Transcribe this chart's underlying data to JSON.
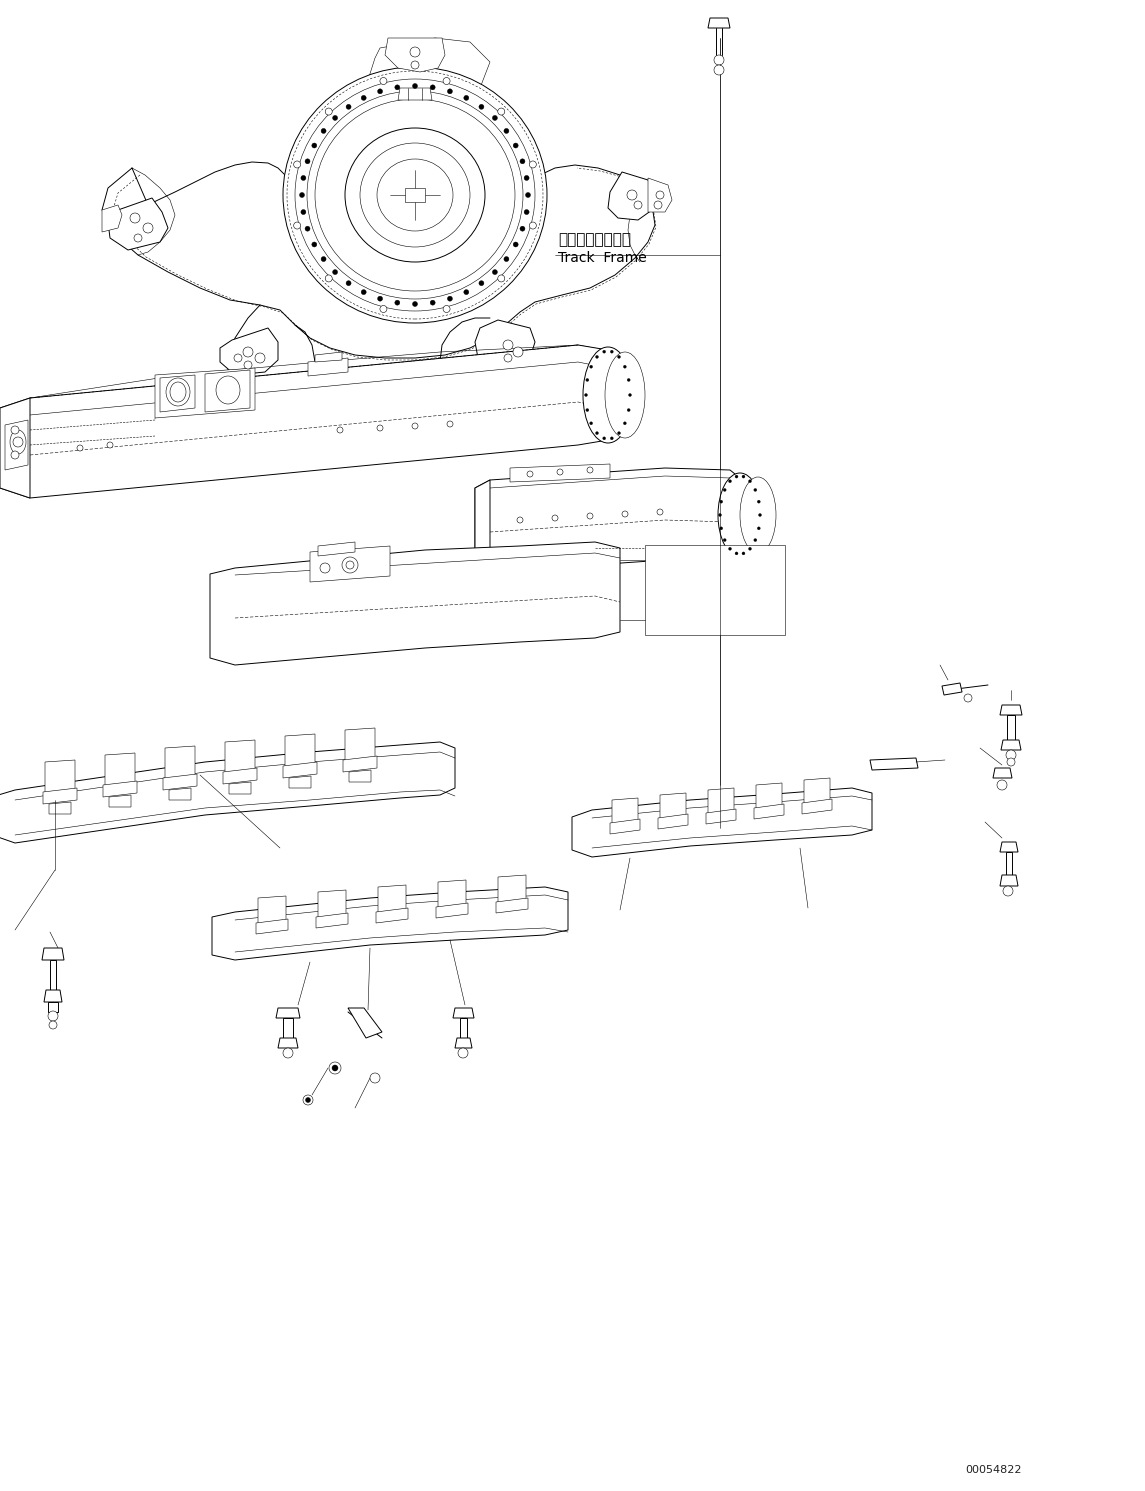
{
  "background_color": "#ffffff",
  "figure_width": 11.45,
  "figure_height": 14.91,
  "dpi": 100,
  "part_code": "00054822",
  "label_japanese": "トラックフレーム",
  "label_english": "Track  Frame",
  "line_color": "#000000",
  "lw_thin": 0.4,
  "lw_med": 0.7,
  "lw_thick": 1.0
}
